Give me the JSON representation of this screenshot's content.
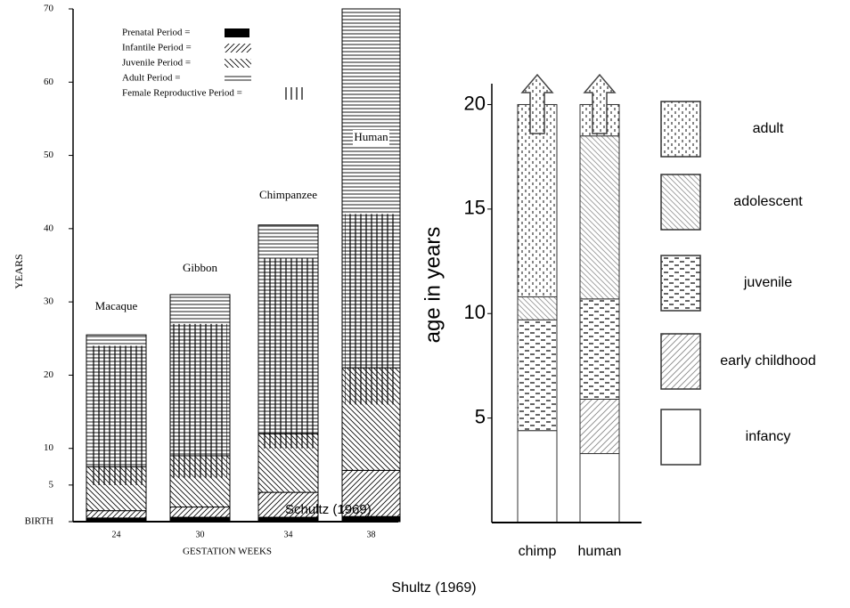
{
  "chart_data": [
    {
      "type": "bar",
      "stacked": true,
      "categories": [
        "Macaque",
        "Gibbon",
        "Chimpanzee",
        "Human"
      ],
      "gestation_weeks": [
        24,
        30,
        34,
        38
      ],
      "xlabel": "GESTATION WEEKS",
      "ylabel": "YEARS",
      "ylim": [
        0,
        70
      ],
      "yticks": [
        {
          "value": 0,
          "label": "BIRTH"
        },
        5,
        10,
        20,
        30,
        40,
        50,
        60,
        70
      ],
      "series": [
        {
          "name": "Prenatal Period  =",
          "pattern": "solid",
          "values": [
            0.5,
            0.6,
            0.6,
            0.7
          ]
        },
        {
          "name": "Infantile Period  =",
          "pattern": "fwd",
          "values": [
            1,
            1.4,
            3.4,
            6.3
          ]
        },
        {
          "name": "Juvenile Period  =",
          "pattern": "back",
          "values": [
            6,
            7,
            8,
            14
          ]
        },
        {
          "name": "Adult Period      =",
          "pattern": "horiz",
          "values": [
            18,
            22,
            28.5,
            49
          ]
        }
      ],
      "overlay": {
        "name": "Female Reproductive Period =",
        "pattern": "vert",
        "low": [
          5,
          6,
          10,
          16
        ],
        "high": [
          24,
          27,
          36,
          42
        ]
      },
      "annotation": "Schultz (1969)",
      "legend": "top-left"
    },
    {
      "type": "bar",
      "stacked": true,
      "categories": [
        "chimp",
        "human"
      ],
      "ylabel": "age in years",
      "ylim": [
        0,
        21
      ],
      "yticks": [
        5,
        10,
        15,
        20
      ],
      "series": [
        {
          "name": "infancy",
          "pattern": "white",
          "values": [
            4.4,
            3.3
          ]
        },
        {
          "name": "early childhood",
          "pattern": "lfwd",
          "values": [
            0,
            2.6
          ]
        },
        {
          "name": "juvenile",
          "pattern": "dash",
          "values": [
            5.3,
            4.8
          ]
        },
        {
          "name": "adolescent",
          "pattern": "lback",
          "values": [
            1.1,
            7.8
          ]
        },
        {
          "name": "adult",
          "pattern": "dots",
          "values": [
            9.2,
            1.5
          ]
        }
      ],
      "legend": "right"
    }
  ],
  "caption": "Shultz (1969)"
}
